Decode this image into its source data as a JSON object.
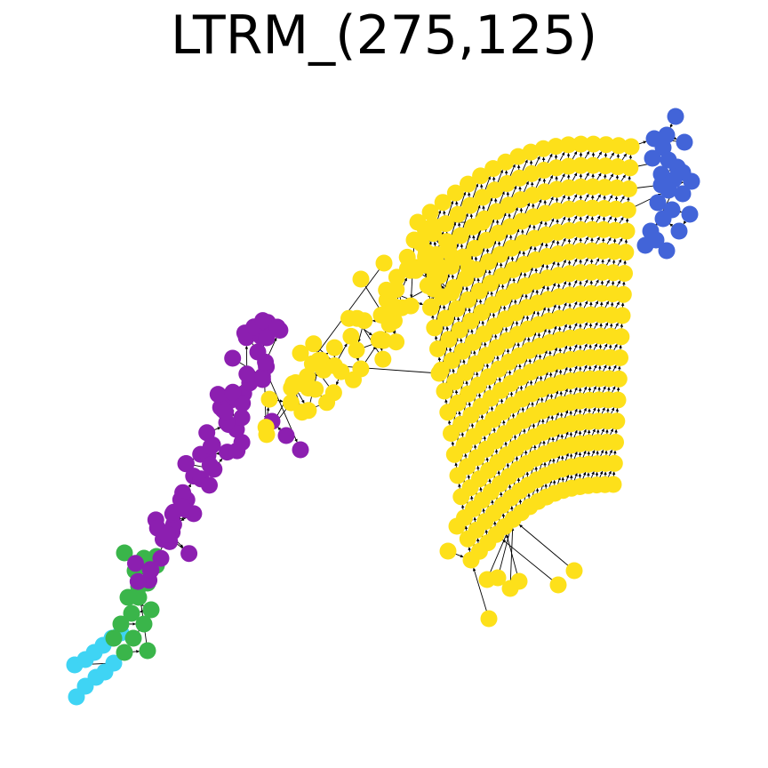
{
  "title": "LTRM_(275,125)",
  "colors": {
    "yellow": "#fde01a",
    "purple": "#8c1fb0",
    "blue": "#4264d8",
    "green": "#3ab54a",
    "cyan": "#3fd4f4",
    "edge": "#000000"
  }
}
